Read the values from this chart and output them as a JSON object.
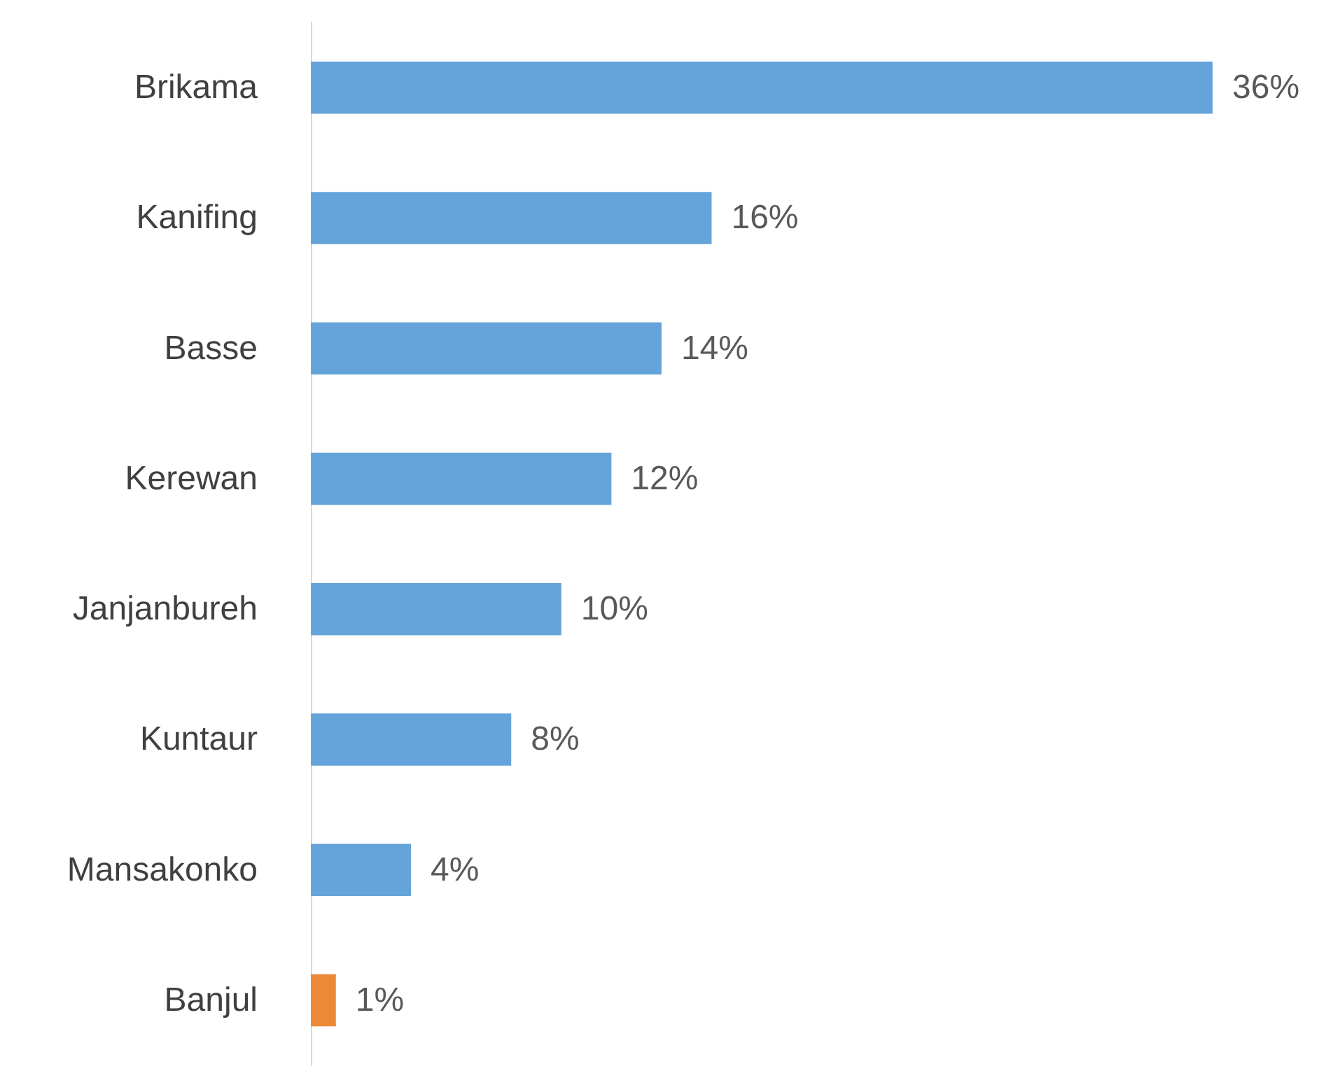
{
  "chart_data": {
    "type": "bar",
    "orientation": "horizontal",
    "categories": [
      "Brikama",
      "Kanifing",
      "Basse",
      "Kerewan",
      "Janjanbureh",
      "Kuntaur",
      "Mansakonko",
      "Banjul"
    ],
    "values": [
      36,
      16,
      14,
      12,
      10,
      8,
      4,
      1
    ],
    "colors": [
      "#65a3db",
      "#65a3db",
      "#65a3db",
      "#65a3db",
      "#65a3db",
      "#65a3db",
      "#65a3db",
      "#ed8936"
    ],
    "value_labels": [
      "36%",
      "16%",
      "14%",
      "12%",
      "10%",
      "8%",
      "4%",
      "1%"
    ]
  }
}
